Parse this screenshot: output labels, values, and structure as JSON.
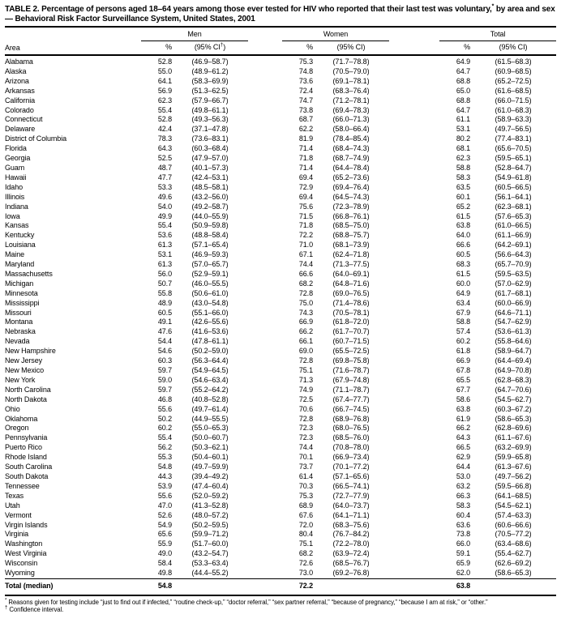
{
  "table": {
    "title_part1": "TABLE 2. Percentage of persons aged 18–64 years among those ever tested for HIV who reported that their last test was voluntary,",
    "title_sup": "*",
    "title_part2": " by area and sex — Behavioral Risk Factor Surveillance System, United States, 2001",
    "area_header": "Area",
    "groups": [
      {
        "label": "Men",
        "pct_header": "%",
        "ci_pre": "(95% CI",
        "ci_sup": "†",
        "ci_post": ")"
      },
      {
        "label": "Women",
        "pct_header": "%",
        "ci_pre": "(95% CI",
        "ci_sup": "",
        "ci_post": ")"
      },
      {
        "label": "Total",
        "pct_header": "%",
        "ci_pre": "(95% CI",
        "ci_sup": "",
        "ci_post": ")"
      }
    ],
    "rows": [
      [
        "Alabama",
        "52.8",
        "(46.9–58.7)",
        "75.3",
        "(71.7–78.8)",
        "64.9",
        "(61.5–68.3)"
      ],
      [
        "Alaska",
        "55.0",
        "(48.9–61.2)",
        "74.8",
        "(70.5–79.0)",
        "64.7",
        "(60.9–68.5)"
      ],
      [
        "Arizona",
        "64.1",
        "(58.3–69.9)",
        "73.6",
        "(69.1–78.1)",
        "68.8",
        "(65.2–72.5)"
      ],
      [
        "Arkansas",
        "56.9",
        "(51.3–62.5)",
        "72.4",
        "(68.3–76.4)",
        "65.0",
        "(61.6–68.5)"
      ],
      [
        "California",
        "62.3",
        "(57.9–66.7)",
        "74.7",
        "(71.2–78.1)",
        "68.8",
        "(66.0–71.5)"
      ],
      [
        "Colorado",
        "55.4",
        "(49.8–61.1)",
        "73.8",
        "(69.4–78.3)",
        "64.7",
        "(61.0–68.3)"
      ],
      [
        "Connecticut",
        "52.8",
        "(49.3–56.3)",
        "68.7",
        "(66.0–71.3)",
        "61.1",
        "(58.9–63.3)"
      ],
      [
        "Delaware",
        "42.4",
        "(37.1–47.8)",
        "62.2",
        "(58.0–66.4)",
        "53.1",
        "(49.7–56.5)"
      ],
      [
        "District of Columbia",
        "78.3",
        "(73.6–83.1)",
        "81.9",
        "(78.4–85.4)",
        "80.2",
        "(77.4–83.1)"
      ],
      [
        "Florida",
        "64.3",
        "(60.3–68.4)",
        "71.4",
        "(68.4–74.3)",
        "68.1",
        "(65.6–70.5)"
      ],
      [
        "Georgia",
        "52.5",
        "(47.9–57.0)",
        "71.8",
        "(68.7–74.9)",
        "62.3",
        "(59.5–65.1)"
      ],
      [
        "Guam",
        "48.7",
        "(40.1–57.3)",
        "71.4",
        "(64.4–78.4)",
        "58.8",
        "(52.8–64.7)"
      ],
      [
        "Hawaii",
        "47.7",
        "(42.4–53.1)",
        "69.4",
        "(65.2–73.6)",
        "58.3",
        "(54.9–61.8)"
      ],
      [
        "Idaho",
        "53.3",
        "(48.5–58.1)",
        "72.9",
        "(69.4–76.4)",
        "63.5",
        "(60.5–66.5)"
      ],
      [
        "Illinois",
        "49.6",
        "(43.2–56.0)",
        "69.4",
        "(64.5–74.3)",
        "60.1",
        "(56.1–64.1)"
      ],
      [
        "Indiana",
        "54.0",
        "(49.2–58.7)",
        "75.6",
        "(72.3–78.9)",
        "65.2",
        "(62.3–68.1)"
      ],
      [
        "Iowa",
        "49.9",
        "(44.0–55.9)",
        "71.5",
        "(66.8–76.1)",
        "61.5",
        "(57.6–65.3)"
      ],
      [
        "Kansas",
        "55.4",
        "(50.9–59.8)",
        "71.8",
        "(68.5–75.0)",
        "63.8",
        "(61.0–66.5)"
      ],
      [
        "Kentucky",
        "53.6",
        "(48.8–58.4)",
        "72.2",
        "(68.8–75.7)",
        "64.0",
        "(61.1–66.9)"
      ],
      [
        "Louisiana",
        "61.3",
        "(57.1–65.4)",
        "71.0",
        "(68.1–73.9)",
        "66.6",
        "(64.2–69.1)"
      ],
      [
        "Maine",
        "53.1",
        "(46.9–59.3)",
        "67.1",
        "(62.4–71.8)",
        "60.5",
        "(56.6–64.3)"
      ],
      [
        "Maryland",
        "61.3",
        "(57.0–65.7)",
        "74.4",
        "(71.3–77.5)",
        "68.3",
        "(65.7–70.9)"
      ],
      [
        "Massachusetts",
        "56.0",
        "(52.9–59.1)",
        "66.6",
        "(64.0–69.1)",
        "61.5",
        "(59.5–63.5)"
      ],
      [
        "Michigan",
        "50.7",
        "(46.0–55.5)",
        "68.2",
        "(64.8–71.6)",
        "60.0",
        "(57.0–62.9)"
      ],
      [
        "Minnesota",
        "55.8",
        "(50.6–61.0)",
        "72.8",
        "(69.0–76.5)",
        "64.9",
        "(61.7–68.1)"
      ],
      [
        "Mississippi",
        "48.9",
        "(43.0–54.8)",
        "75.0",
        "(71.4–78.6)",
        "63.4",
        "(60.0–66.9)"
      ],
      [
        "Missouri",
        "60.5",
        "(55.1–66.0)",
        "74.3",
        "(70.5–78.1)",
        "67.9",
        "(64.6–71.1)"
      ],
      [
        "Montana",
        "49.1",
        "(42.6–55.6)",
        "66.9",
        "(61.8–72.0)",
        "58.8",
        "(54.7–62.9)"
      ],
      [
        "Nebraska",
        "47.6",
        "(41.6–53.6)",
        "66.2",
        "(61.7–70.7)",
        "57.4",
        "(53.6–61.3)"
      ],
      [
        "Nevada",
        "54.4",
        "(47.8–61.1)",
        "66.1",
        "(60.7–71.5)",
        "60.2",
        "(55.8–64.6)"
      ],
      [
        "New Hampshire",
        "54.6",
        "(50.2–59.0)",
        "69.0",
        "(65.5–72.5)",
        "61.8",
        "(58.9–64.7)"
      ],
      [
        "New Jersey",
        "60.3",
        "(56.3–64.4)",
        "72.8",
        "(69.8–75.8)",
        "66.9",
        "(64.4–69.4)"
      ],
      [
        "New Mexico",
        "59.7",
        "(54.9–64.5)",
        "75.1",
        "(71.6–78.7)",
        "67.8",
        "(64.9–70.8)"
      ],
      [
        "New York",
        "59.0",
        "(54.6–63.4)",
        "71.3",
        "(67.9–74.8)",
        "65.5",
        "(62.8–68.3)"
      ],
      [
        "North Carolina",
        "59.7",
        "(55.2–64.2)",
        "74.9",
        "(71.1–78.7)",
        "67.7",
        "(64.7–70.6)"
      ],
      [
        "North Dakota",
        "46.8",
        "(40.8–52.8)",
        "72.5",
        "(67.4–77.7)",
        "58.6",
        "(54.5–62.7)"
      ],
      [
        "Ohio",
        "55.6",
        "(49.7–61.4)",
        "70.6",
        "(66.7–74.5)",
        "63.8",
        "(60.3–67.2)"
      ],
      [
        "Oklahoma",
        "50.2",
        "(44.9–55.5)",
        "72.8",
        "(68.9–76.8)",
        "61.9",
        "(58.6–65.3)"
      ],
      [
        "Oregon",
        "60.2",
        "(55.0–65.3)",
        "72.3",
        "(68.0–76.5)",
        "66.2",
        "(62.8–69.6)"
      ],
      [
        "Pennsylvania",
        "55.4",
        "(50.0–60.7)",
        "72.3",
        "(68.5–76.0)",
        "64.3",
        "(61.1–67.6)"
      ],
      [
        "Puerto Rico",
        "56.2",
        "(50.3–62.1)",
        "74.4",
        "(70.8–78.0)",
        "66.5",
        "(63.2–69.9)"
      ],
      [
        "Rhode Island",
        "55.3",
        "(50.4–60.1)",
        "70.1",
        "(66.9–73.4)",
        "62.9",
        "(59.9–65.8)"
      ],
      [
        "South Carolina",
        "54.8",
        "(49.7–59.9)",
        "73.7",
        "(70.1–77.2)",
        "64.4",
        "(61.3–67.6)"
      ],
      [
        "South Dakota",
        "44.3",
        "(39.4–49.2)",
        "61.4",
        "(57.1–65.6)",
        "53.0",
        "(49.7–56.2)"
      ],
      [
        "Tennessee",
        "53.9",
        "(47.4–60.4)",
        "70.3",
        "(66.5–74.1)",
        "63.2",
        "(59.5–66.8)"
      ],
      [
        "Texas",
        "55.6",
        "(52.0–59.2)",
        "75.3",
        "(72.7–77.9)",
        "66.3",
        "(64.1–68.5)"
      ],
      [
        "Utah",
        "47.0",
        "(41.3–52.8)",
        "68.9",
        "(64.0–73.7)",
        "58.3",
        "(54.5–62.1)"
      ],
      [
        "Vermont",
        "52.6",
        "(48.0–57.2)",
        "67.6",
        "(64.1–71.1)",
        "60.4",
        "(57.4–63.3)"
      ],
      [
        "Virgin Islands",
        "54.9",
        "(50.2–59.5)",
        "72.0",
        "(68.3–75.6)",
        "63.6",
        "(60.6–66.6)"
      ],
      [
        "Virginia",
        "65.6",
        "(59.9–71.2)",
        "80.4",
        "(76.7–84.2)",
        "73.8",
        "(70.5–77.2)"
      ],
      [
        "Washington",
        "55.9",
        "(51.7–60.0)",
        "75.1",
        "(72.2–78.0)",
        "66.0",
        "(63.4–68.6)"
      ],
      [
        "West Virginia",
        "49.0",
        "(43.2–54.7)",
        "68.2",
        "(63.9–72.4)",
        "59.1",
        "(55.4–62.7)"
      ],
      [
        "Wisconsin",
        "58.4",
        "(53.3–63.4)",
        "72.6",
        "(68.5–76.7)",
        "65.9",
        "(62.6–69.2)"
      ],
      [
        "Wyoming",
        "49.8",
        "(44.4–55.2)",
        "73.0",
        "(69.2–76.8)",
        "62.0",
        "(58.6–65.3)"
      ]
    ],
    "total_row": [
      "Total (median)",
      "54.8",
      "",
      "72.2",
      "",
      "63.8",
      ""
    ],
    "footnotes": [
      {
        "symbol": "*",
        "text": "Reasons given for testing include “just to find out if infected,” “routine check-up,” “doctor referral,” “sex partner referral,” “because of pregnancy,” “because I am at risk,” or “other.”"
      },
      {
        "symbol": "†",
        "text": "Confidence interval."
      }
    ]
  }
}
